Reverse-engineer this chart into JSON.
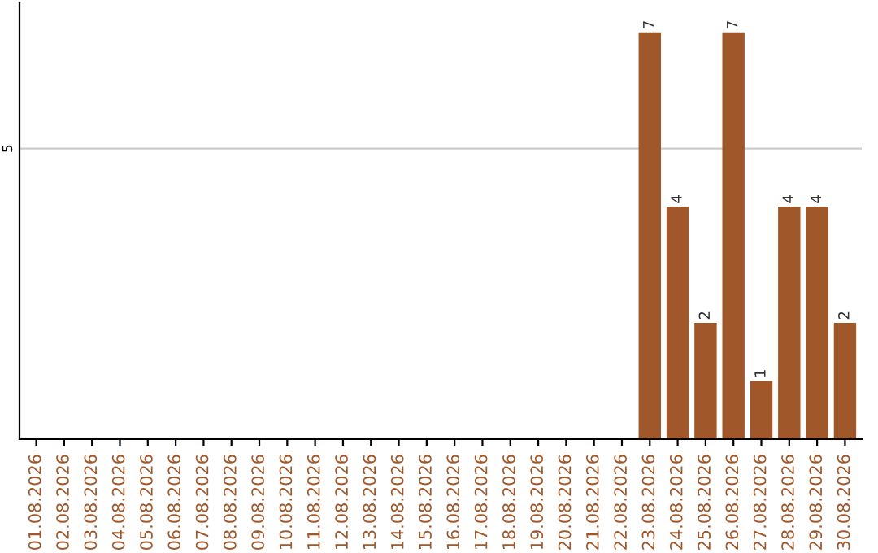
{
  "chart_data": {
    "type": "bar",
    "categories": [
      "01.08.2026",
      "02.08.2026",
      "03.08.2026",
      "04.08.2026",
      "05.08.2026",
      "06.08.2026",
      "07.08.2026",
      "08.08.2026",
      "09.08.2026",
      "10.08.2026",
      "11.08.2026",
      "12.08.2026",
      "13.08.2026",
      "14.08.2026",
      "15.08.2026",
      "16.08.2026",
      "17.08.2026",
      "18.08.2026",
      "19.08.2026",
      "20.08.2026",
      "21.08.2026",
      "22.08.2026",
      "23.08.2026",
      "24.08.2026",
      "25.08.2026",
      "26.08.2026",
      "27.08.2026",
      "28.08.2026",
      "29.08.2026",
      "30.08.2026"
    ],
    "values": [
      null,
      null,
      null,
      null,
      null,
      null,
      null,
      null,
      null,
      null,
      null,
      null,
      null,
      null,
      null,
      null,
      null,
      null,
      null,
      null,
      null,
      null,
      7,
      4,
      2,
      7,
      1,
      4,
      4,
      2
    ],
    "color": "#a0582a",
    "ylim": [
      0,
      7.5
    ],
    "yticks": [
      5
    ],
    "grid": "y",
    "data_labels": true
  }
}
